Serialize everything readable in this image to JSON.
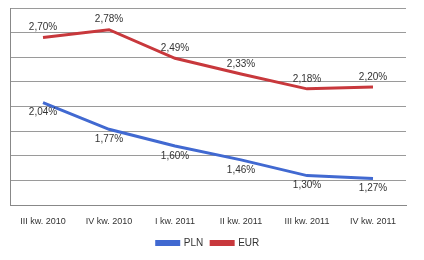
{
  "chart_data": {
    "type": "line",
    "categories": [
      "III kw. 2010",
      "IV kw. 2010",
      "I kw. 2011",
      "II kw. 2011",
      "III kw. 2011",
      "IV kw. 2011"
    ],
    "series": [
      {
        "name": "PLN",
        "color": "#4169d1",
        "values": [
          2.04,
          1.77,
          1.6,
          1.46,
          1.3,
          1.27
        ],
        "value_labels": [
          "2,04%",
          "1,77%",
          "1,60%",
          "1,46%",
          "1,30%",
          "1,27%"
        ]
      },
      {
        "name": "EUR",
        "color": "#c8383c",
        "values": [
          2.7,
          2.78,
          2.49,
          2.33,
          2.18,
          2.2
        ],
        "value_labels": [
          "2,70%",
          "2,78%",
          "2,49%",
          "2,33%",
          "2,18%",
          "2,20%"
        ]
      }
    ],
    "ylim": [
      1.0,
      3.0
    ],
    "yticks": [
      1.0,
      1.25,
      1.5,
      1.75,
      2.0,
      2.25,
      2.5,
      2.75,
      3.0
    ],
    "grid": true,
    "legend": "bottom",
    "data_labels": true,
    "tick_labels": "x"
  }
}
